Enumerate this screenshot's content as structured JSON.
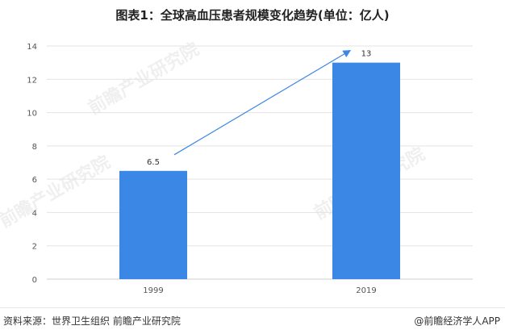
{
  "title": "图表1：全球高血压患者规模变化趋势(单位：亿人)",
  "source": "资料来源：世界卫生组织 前瞻产业研究院",
  "brand": "@前瞻经济学人APP",
  "watermark": "前瞻产业研究院",
  "colors": {
    "bar": "#3a87e6",
    "arrow": "#3a87e6",
    "grid": "#e3e3e3"
  },
  "chart_data": {
    "type": "bar",
    "categories": [
      "1999",
      "2019"
    ],
    "values": [
      6.5,
      13
    ],
    "data_labels": [
      "6.5",
      "13"
    ],
    "ylim": [
      0,
      14
    ],
    "yticks": [
      "0",
      "2",
      "4",
      "6",
      "8",
      "10",
      "12",
      "14"
    ],
    "grid": "y",
    "annotations": [
      {
        "type": "arrow",
        "from": "1999",
        "to": "2019"
      }
    ]
  }
}
